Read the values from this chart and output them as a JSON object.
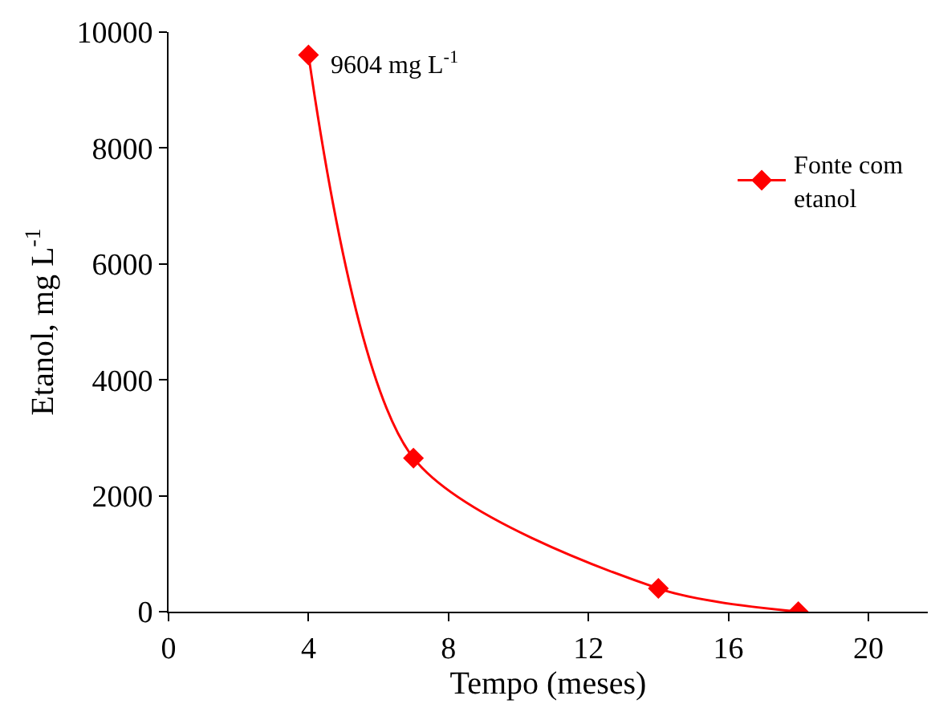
{
  "chart_data": {
    "type": "line",
    "xlabel": "Tempo (meses)",
    "ylabel": "Etanol, mg L$^{-1}$",
    "x": [
      4,
      7,
      14,
      18
    ],
    "series": [
      {
        "name": "Fonte com\netanol",
        "color": "#ff0000",
        "values": [
          9604,
          2650,
          400,
          0
        ]
      }
    ],
    "xlim": [
      0,
      21.7
    ],
    "xticks": [
      0,
      4,
      8,
      12,
      16,
      20
    ],
    "ylim": [
      0,
      10000
    ],
    "yticks": [
      0,
      2000,
      4000,
      6000,
      8000,
      10000
    ],
    "annotations": [
      {
        "text": "9604 mg L$^{-1}$",
        "x": 4,
        "y": 9604
      }
    ],
    "marker": "diamond",
    "line_style": "solid",
    "legend": "top right"
  }
}
